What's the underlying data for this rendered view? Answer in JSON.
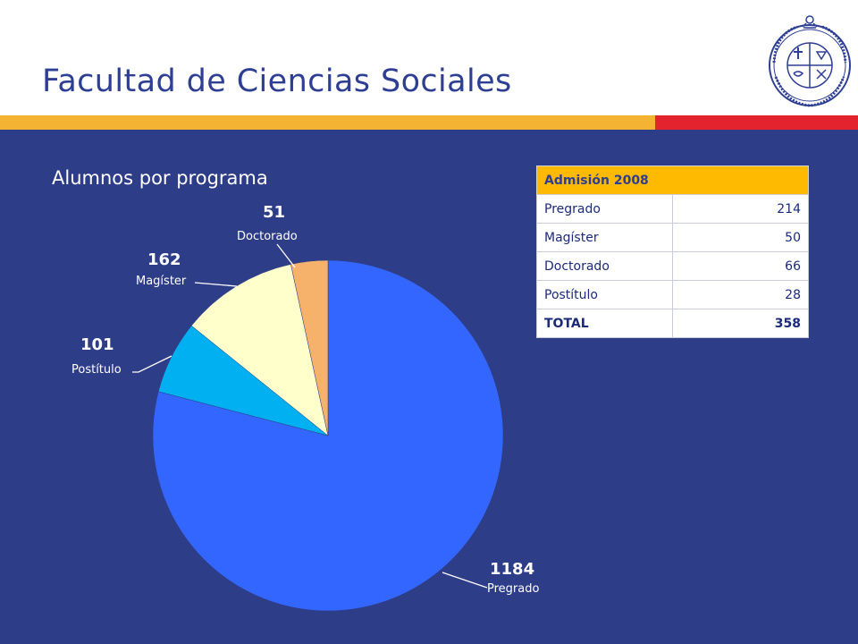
{
  "header": {
    "title": "Facultad de Ciencias Sociales"
  },
  "colors": {
    "title": "#2e3e93",
    "band_yellow": "#f5b333",
    "band_red": "#e3232e",
    "background": "#2e3d87",
    "table_header": "#fdba00"
  },
  "logo": {
    "icon": "university-seal-icon"
  },
  "chart_data": {
    "type": "pie",
    "title": "Alumnos por programa",
    "slices": [
      {
        "label": "Pregrado",
        "value": 1184,
        "color": "#3366ff",
        "text_color": "#ffffff",
        "callout": "bottom-right"
      },
      {
        "label": "Postítulo",
        "value": 101,
        "color": "#00b0f0",
        "text_color": "#ffffff",
        "callout": "left"
      },
      {
        "label": "Magíster",
        "value": 162,
        "color": "#ffffcc",
        "text_color": "#ffffff",
        "callout": "upper-left"
      },
      {
        "label": "Doctorado",
        "value": 51,
        "color": "#f6b26b",
        "text_color": "#ffffff",
        "callout": "top"
      }
    ],
    "start": "12 o'clock",
    "direction": "clockwise",
    "legend": "none"
  },
  "table": {
    "header": "Admisión 2008",
    "rows": [
      {
        "label": "Pregrado",
        "value": "214"
      },
      {
        "label": "Magíster",
        "value": "50"
      },
      {
        "label": "Doctorado",
        "value": "66"
      },
      {
        "label": "Postítulo",
        "value": "28"
      }
    ],
    "total": {
      "label": "TOTAL",
      "value": "358"
    }
  }
}
